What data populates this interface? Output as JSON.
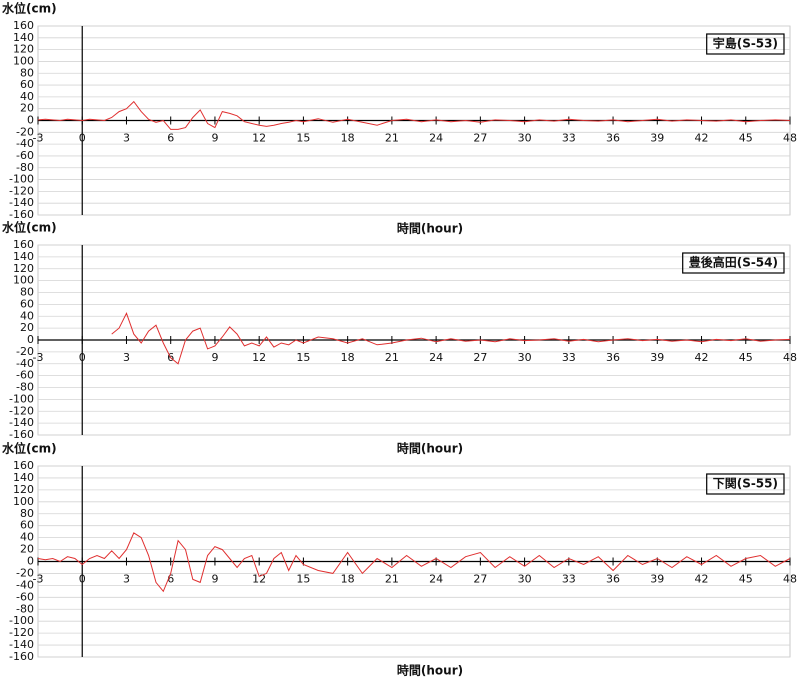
{
  "chart_data": [
    {
      "type": "line",
      "title": "宇島(S-53)",
      "y_label": "水位(cm)",
      "x_label": "時間(hour)",
      "x": [
        -3,
        -2.5,
        -2,
        -1.5,
        -1,
        -0.5,
        0,
        0.5,
        1,
        1.5,
        2,
        2.5,
        3,
        3.5,
        4,
        4.5,
        5,
        5.5,
        6,
        6.5,
        7,
        7.5,
        8,
        8.5,
        9,
        9.5,
        10,
        10.5,
        11,
        11.5,
        12,
        12.5,
        13,
        13.5,
        14,
        14.5,
        15,
        16,
        17,
        18,
        19,
        20,
        21,
        22,
        23,
        24,
        25,
        26,
        27,
        28,
        29,
        30,
        31,
        32,
        33,
        34,
        35,
        36,
        37,
        38,
        39,
        40,
        41,
        42,
        43,
        44,
        45,
        46,
        47,
        48
      ],
      "series": [
        {
          "color": "#e03030",
          "values": [
            1,
            2,
            1,
            0,
            2,
            1,
            0,
            2,
            1,
            0,
            5,
            15,
            20,
            32,
            15,
            2,
            -3,
            0,
            -15,
            -15,
            -12,
            5,
            18,
            -5,
            -12,
            15,
            12,
            8,
            -2,
            -5,
            -8,
            -10,
            -8,
            -5,
            -3,
            0,
            -2,
            3,
            -3,
            2,
            -3,
            -8,
            0,
            2,
            -2,
            1,
            -2,
            0,
            -3,
            1,
            0,
            -2,
            1,
            -1,
            2,
            0,
            -1,
            1,
            -2,
            0,
            2,
            -1,
            1,
            0,
            -1,
            1,
            -2,
            0,
            1,
            0
          ]
        }
      ],
      "xlim": [
        -3,
        48
      ],
      "xticks": [
        -3,
        0,
        3,
        6,
        9,
        12,
        15,
        18,
        21,
        24,
        27,
        30,
        33,
        36,
        39,
        42,
        45,
        48
      ],
      "ylim": [
        -160,
        160
      ],
      "yticks": [
        -160,
        -140,
        -120,
        -100,
        -80,
        -60,
        -40,
        -20,
        0,
        20,
        40,
        60,
        80,
        100,
        120,
        140,
        160
      ],
      "grid": true
    },
    {
      "type": "line",
      "title": "豊後高田(S-54)",
      "y_label": "水位(cm)",
      "x_label": "時間(hour)",
      "x": [
        -3,
        -2.5,
        -2,
        -1.5,
        -1,
        -0.5,
        0,
        0.5,
        1,
        1.5,
        2,
        2.5,
        3,
        3.5,
        4,
        4.5,
        5,
        5.5,
        6,
        6.5,
        7,
        7.5,
        8,
        8.5,
        9,
        9.5,
        10,
        10.5,
        11,
        11.5,
        12,
        12.5,
        13,
        13.5,
        14,
        14.5,
        15,
        16,
        17,
        18,
        19,
        20,
        21,
        22,
        23,
        24,
        25,
        26,
        27,
        28,
        29,
        30,
        31,
        32,
        33,
        34,
        35,
        36,
        37,
        38,
        39,
        40,
        41,
        42,
        43,
        44,
        45,
        46,
        47,
        48
      ],
      "series": [
        {
          "color": "#e03030",
          "values": [
            null,
            null,
            null,
            null,
            null,
            null,
            null,
            null,
            null,
            null,
            10,
            20,
            45,
            10,
            -5,
            15,
            25,
            -5,
            -30,
            -40,
            0,
            15,
            20,
            -15,
            -10,
            5,
            22,
            10,
            -10,
            -5,
            -10,
            5,
            -12,
            -5,
            -8,
            0,
            -5,
            5,
            2,
            -5,
            2,
            -8,
            -5,
            0,
            3,
            -3,
            2,
            -2,
            0,
            -3,
            2,
            -1,
            0,
            2,
            -2,
            1,
            -3,
            0,
            2,
            -1,
            1,
            -2,
            0,
            -3,
            1,
            -1,
            2,
            -2,
            0,
            1
          ]
        }
      ],
      "xlim": [
        -3,
        48
      ],
      "xticks": [
        -3,
        0,
        3,
        6,
        9,
        12,
        15,
        18,
        21,
        24,
        27,
        30,
        33,
        36,
        39,
        42,
        45,
        48
      ],
      "ylim": [
        -160,
        160
      ],
      "yticks": [
        -160,
        -140,
        -120,
        -100,
        -80,
        -60,
        -40,
        -20,
        0,
        20,
        40,
        60,
        80,
        100,
        120,
        140,
        160
      ],
      "grid": true
    },
    {
      "type": "line",
      "title": "下関(S-55)",
      "y_label": "水位(cm)",
      "x_label": "時間(hour)",
      "x": [
        -3,
        -2.5,
        -2,
        -1.5,
        -1,
        -0.5,
        0,
        0.5,
        1,
        1.5,
        2,
        2.5,
        3,
        3.5,
        4,
        4.5,
        5,
        5.5,
        6,
        6.5,
        7,
        7.5,
        8,
        8.5,
        9,
        9.5,
        10,
        10.5,
        11,
        11.5,
        12,
        12.5,
        13,
        13.5,
        14,
        14.5,
        15,
        16,
        17,
        18,
        19,
        20,
        21,
        22,
        23,
        24,
        25,
        26,
        27,
        28,
        29,
        30,
        31,
        32,
        33,
        34,
        35,
        36,
        37,
        38,
        39,
        40,
        41,
        42,
        43,
        44,
        45,
        46,
        47,
        48
      ],
      "series": [
        {
          "color": "#e03030",
          "values": [
            5,
            3,
            5,
            0,
            8,
            5,
            -5,
            5,
            10,
            5,
            18,
            5,
            20,
            48,
            40,
            10,
            -35,
            -50,
            -20,
            35,
            20,
            -30,
            -35,
            10,
            25,
            20,
            5,
            -10,
            5,
            10,
            -25,
            -20,
            5,
            15,
            -15,
            10,
            -5,
            -15,
            -20,
            15,
            -20,
            5,
            -10,
            10,
            -8,
            5,
            -10,
            8,
            15,
            -10,
            8,
            -8,
            10,
            -10,
            5,
            -5,
            8,
            -15,
            10,
            -5,
            5,
            -10,
            8,
            -5,
            10,
            -8,
            5,
            10,
            -8,
            5
          ]
        }
      ],
      "xlim": [
        -3,
        48
      ],
      "xticks": [
        -3,
        0,
        3,
        6,
        9,
        12,
        15,
        18,
        21,
        24,
        27,
        30,
        33,
        36,
        39,
        42,
        45,
        48
      ],
      "ylim": [
        -160,
        160
      ],
      "yticks": [
        -160,
        -140,
        -120,
        -100,
        -80,
        -60,
        -40,
        -20,
        0,
        20,
        40,
        60,
        80,
        100,
        120,
        140,
        160
      ],
      "grid": true
    }
  ]
}
